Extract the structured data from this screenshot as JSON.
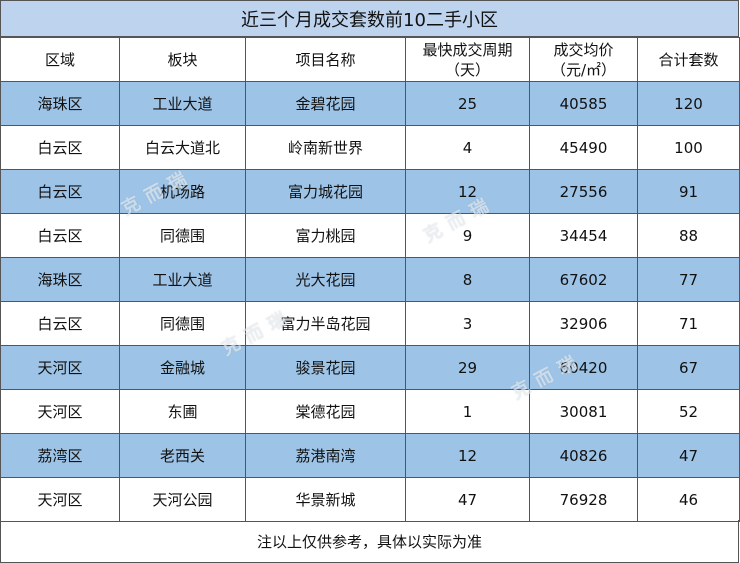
{
  "title": "近三个月成交套数前10二手小区",
  "headers": {
    "district": "区域",
    "block": "板块",
    "project": "项目名称",
    "cycle_line1": "最快成交周期",
    "cycle_line2": "（天）",
    "price_line1": "成交均价",
    "price_line2": "（元/㎡）",
    "count": "合计套数"
  },
  "rows": [
    {
      "district": "海珠区",
      "block": "工业大道",
      "project": "金碧花园",
      "cycle": "25",
      "price": "40585",
      "count": "120"
    },
    {
      "district": "白云区",
      "block": "白云大道北",
      "project": "岭南新世界",
      "cycle": "4",
      "price": "45490",
      "count": "100"
    },
    {
      "district": "白云区",
      "block": "机场路",
      "project": "富力城花园",
      "cycle": "12",
      "price": "27556",
      "count": "91"
    },
    {
      "district": "白云区",
      "block": "同德围",
      "project": "富力桃园",
      "cycle": "9",
      "price": "34454",
      "count": "88"
    },
    {
      "district": "海珠区",
      "block": "工业大道",
      "project": "光大花园",
      "cycle": "8",
      "price": "67602",
      "count": "77"
    },
    {
      "district": "白云区",
      "block": "同德围",
      "project": "富力半岛花园",
      "cycle": "3",
      "price": "32906",
      "count": "71"
    },
    {
      "district": "天河区",
      "block": "金融城",
      "project": "骏景花园",
      "cycle": "29",
      "price": "60420",
      "count": "67"
    },
    {
      "district": "天河区",
      "block": "东圃",
      "project": "棠德花园",
      "cycle": "1",
      "price": "30081",
      "count": "52"
    },
    {
      "district": "荔湾区",
      "block": "老西关",
      "project": "荔港南湾",
      "cycle": "12",
      "price": "40826",
      "count": "47"
    },
    {
      "district": "天河区",
      "block": "天河公园",
      "project": "华景新城",
      "cycle": "47",
      "price": "76928",
      "count": "46"
    }
  ],
  "footnote": "注以上仅供参考，具体以实际为准",
  "watermark": "克而瑞",
  "colors": {
    "band": "#9dc3e6",
    "title_bg": "#bdd3ee",
    "border": "#555555"
  }
}
